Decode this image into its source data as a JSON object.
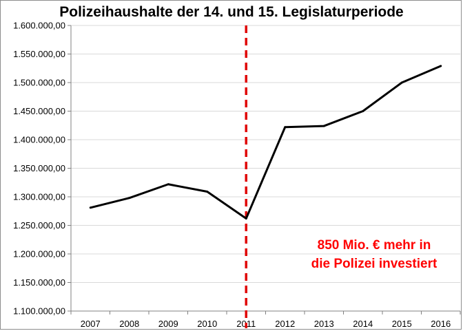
{
  "chart_data": {
    "type": "line",
    "title": "Polizeihaushalte der 14. und 15. Legislaturperiode",
    "xlabel": "",
    "ylabel": "",
    "categories": [
      "2007",
      "2008",
      "2009",
      "2010",
      "2011",
      "2012",
      "2013",
      "2014",
      "2015",
      "2016"
    ],
    "series": [
      {
        "values": [
          1281000,
          1298000,
          1322000,
          1309000,
          1262000,
          1422000,
          1424000,
          1450000,
          1500000,
          1529000
        ]
      }
    ],
    "ylim": [
      1100000,
      1600000
    ],
    "y_ticks": [
      1100000,
      1150000,
      1200000,
      1250000,
      1300000,
      1350000,
      1400000,
      1450000,
      1500000,
      1550000,
      1600000
    ],
    "y_tick_labels": [
      "1.100.000,00",
      "1.150.000,00",
      "1.200.000,00",
      "1.250.000,00",
      "1.300.000,00",
      "1.350.000,00",
      "1.400.000,00",
      "1.450.000,00",
      "1.500.000,00",
      "1.550.000,00",
      "1.600.000,00"
    ],
    "grid": true,
    "reference_line": {
      "x": "2011",
      "style": "dashed",
      "color": "#e00000"
    },
    "annotation": {
      "lines": [
        "850 Mio. € mehr in",
        "die Polizei investiert"
      ],
      "color": "#ff0000"
    },
    "line_color": "#000000",
    "grid_color": "#d9d9d9"
  }
}
